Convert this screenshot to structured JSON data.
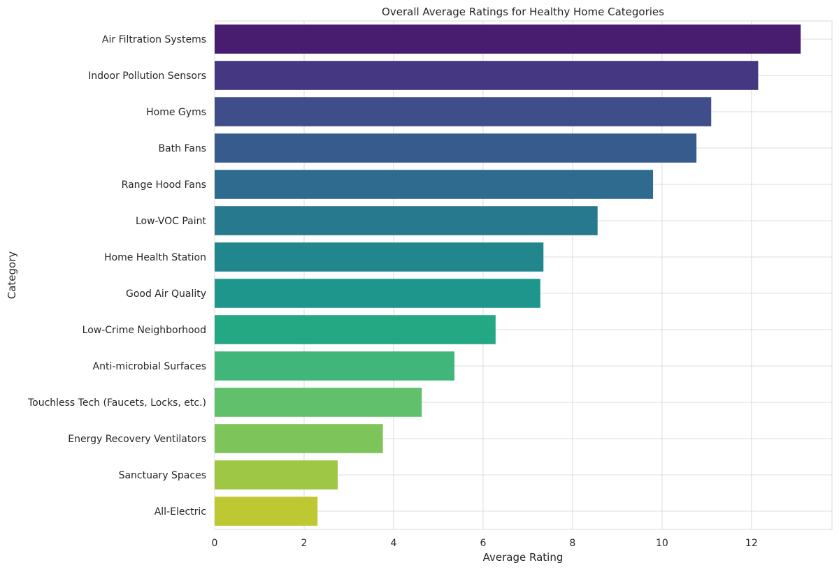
{
  "chart_data": {
    "type": "bar",
    "orientation": "horizontal",
    "title": "Overall Average Ratings for Healthy Home Categories",
    "xlabel": "Average Rating",
    "ylabel": "Category",
    "xlim": [
      0,
      13.8
    ],
    "xticks": [
      0,
      2,
      4,
      6,
      8,
      10,
      12
    ],
    "grid": true,
    "categories": [
      "Air Filtration Systems",
      "Indoor Pollution Sensors",
      "Home Gyms",
      "Bath Fans",
      "Range Hood Fans",
      "Low-VOC Paint",
      "Home Health Station",
      "Good Air Quality",
      "Low-Crime Neighborhood",
      "Anti-microbial Surfaces",
      "Touchless Tech (Faucets, Locks, etc.)",
      "Energy Recovery Ventilators",
      "Sanctuary Spaces",
      "All-Electric"
    ],
    "values": [
      13.1,
      12.15,
      11.1,
      10.77,
      9.8,
      8.56,
      7.35,
      7.28,
      6.28,
      5.36,
      4.63,
      3.76,
      2.75,
      2.3
    ],
    "colors": [
      "#481c6e",
      "#453781",
      "#3f4d8a",
      "#375b8d",
      "#2f6b8e",
      "#27798e",
      "#21878d",
      "#1f968b",
      "#24a884",
      "#40b67a",
      "#61c06c",
      "#7dc55a",
      "#9dc745",
      "#bdc832"
    ]
  }
}
